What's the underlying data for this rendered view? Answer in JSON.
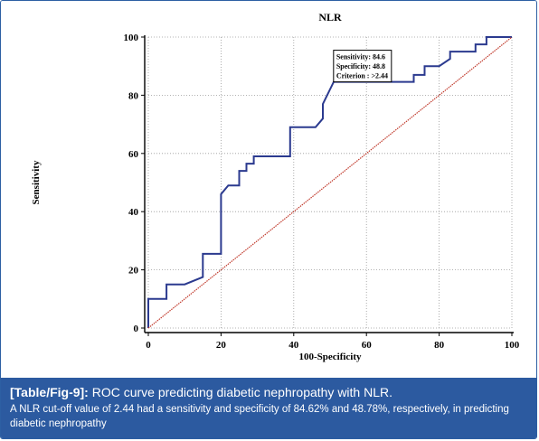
{
  "chart_data": {
    "type": "line",
    "title": "NLR",
    "xlabel": "100-Specificity",
    "ylabel": "Sensitivity",
    "xlim": [
      0,
      100
    ],
    "ylim": [
      0,
      100
    ],
    "xticks": [
      "0",
      "20",
      "40",
      "60",
      "80",
      "100"
    ],
    "yticks": [
      "0",
      "20",
      "40",
      "60",
      "80",
      "100"
    ],
    "grid": true,
    "series": [
      {
        "color": "#2b3a8f",
        "x": [
          0,
          0,
          5,
          5,
          10,
          15,
          15,
          20,
          20,
          22,
          24,
          25,
          25,
          27,
          27,
          29,
          29,
          39,
          39,
          46,
          48,
          48,
          51,
          51,
          73,
          73,
          76,
          76,
          80,
          83,
          83,
          90,
          90,
          93,
          93,
          100
        ],
        "y": [
          0,
          10,
          10,
          15,
          15,
          17.5,
          25.5,
          25.5,
          46,
          49,
          49,
          49,
          54,
          54,
          56.5,
          56.5,
          59,
          59,
          69,
          69,
          72,
          77,
          84.6,
          84.6,
          84.6,
          87,
          87,
          90,
          90,
          92.5,
          95,
          95,
          97.5,
          97.5,
          100,
          100
        ]
      },
      {
        "color": "#c0392b",
        "style": "dotted",
        "x": [
          0,
          100
        ],
        "y": [
          0,
          100
        ]
      }
    ],
    "annotation": {
      "lines": [
        "Sensitivity: 84.6",
        "Specificity: 48.8",
        "Criterion : >2.44"
      ],
      "point": [
        51.2,
        84.6
      ]
    }
  },
  "caption": {
    "tag": "[Table/Fig-9]:",
    "title": " ROC curve predicting diabetic nephropathy with NLR.",
    "text": "A NLR cut-off value of 2.44 had a sensitivity and specificity of 84.62% and 48.78%, respectively, in predicting diabetic nephropathy"
  }
}
